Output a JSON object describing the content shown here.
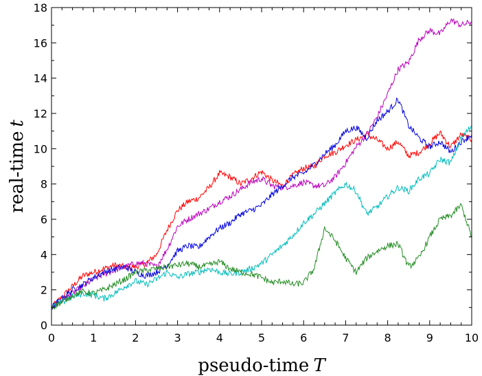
{
  "chart_data": {
    "type": "line",
    "title": "",
    "xlabel": "pseudo-time",
    "xlabel_symbol": "T",
    "ylabel": "real-time",
    "ylabel_symbol": "t",
    "xlim": [
      0,
      10
    ],
    "ylim": [
      0,
      18
    ],
    "xticks": [
      "0",
      "1",
      "2",
      "3",
      "4",
      "5",
      "6",
      "7",
      "8",
      "9",
      "10"
    ],
    "yticks": [
      "0",
      "2",
      "4",
      "6",
      "8",
      "10",
      "12",
      "14",
      "16",
      "18"
    ],
    "grid": false,
    "legend": "none",
    "x": [
      0,
      0.25,
      0.5,
      0.75,
      1,
      1.25,
      1.5,
      1.75,
      2,
      2.25,
      2.5,
      2.75,
      3,
      3.25,
      3.5,
      3.75,
      4,
      4.25,
      4.5,
      4.75,
      5,
      5.25,
      5.5,
      5.75,
      6,
      6.25,
      6.5,
      6.75,
      7,
      7.25,
      7.5,
      7.75,
      8,
      8.25,
      8.5,
      8.75,
      9,
      9.25,
      9.5,
      9.75,
      10
    ],
    "series": [
      {
        "color": "#ff0000",
        "values": [
          1,
          1.6,
          2.2,
          2.8,
          3.0,
          3.2,
          3.4,
          3.3,
          3.3,
          3.5,
          4.0,
          5.4,
          6.5,
          7.0,
          7.2,
          7.8,
          8.6,
          8.4,
          8.0,
          8.3,
          8.7,
          8.2,
          7.9,
          8.5,
          8.9,
          9.0,
          9.6,
          9.8,
          10.2,
          10.5,
          10.8,
          10.5,
          10.0,
          10.4,
          9.6,
          9.8,
          10.3,
          10.9,
          10.1,
          10.8,
          10.5
        ]
      },
      {
        "color": "#bb00bb",
        "values": [
          1,
          1.4,
          1.8,
          2.2,
          2.6,
          2.9,
          3.1,
          3.3,
          3.5,
          3.5,
          3.3,
          4.3,
          5.6,
          6.0,
          6.3,
          6.6,
          7.0,
          7.3,
          7.7,
          8.1,
          8.3,
          7.9,
          7.8,
          7.9,
          8.1,
          7.9,
          7.9,
          8.4,
          9.2,
          10.1,
          10.8,
          11.8,
          13.1,
          14.5,
          14.9,
          16.2,
          16.7,
          16.5,
          17.3,
          17.0,
          17.2
        ]
      },
      {
        "color": "#0000dd",
        "values": [
          1,
          1.5,
          2.0,
          2.3,
          2.7,
          3.0,
          3.2,
          3.3,
          3.0,
          2.8,
          3.0,
          3.4,
          4.2,
          4.5,
          4.4,
          5.0,
          5.5,
          5.8,
          6.3,
          6.5,
          6.8,
          7.4,
          7.9,
          8.4,
          8.6,
          9.1,
          9.7,
          10.2,
          11.0,
          11.2,
          10.6,
          11.6,
          12.1,
          12.8,
          11.3,
          10.6,
          10.1,
          10.4,
          9.8,
          10.4,
          10.8
        ]
      },
      {
        "color": "#00bbbb",
        "values": [
          1,
          1.3,
          1.6,
          1.8,
          1.7,
          1.5,
          1.8,
          2.2,
          2.5,
          2.3,
          2.6,
          3.0,
          2.7,
          2.9,
          3.0,
          3.2,
          3.0,
          2.9,
          3.0,
          3.2,
          3.5,
          4.0,
          4.5,
          5.1,
          5.8,
          6.3,
          6.9,
          7.5,
          8.0,
          7.6,
          6.3,
          6.7,
          7.3,
          7.8,
          7.6,
          8.3,
          8.6,
          9.4,
          9.2,
          10.6,
          11.3
        ]
      },
      {
        "color": "#228b22",
        "values": [
          1,
          1.3,
          1.7,
          1.9,
          1.8,
          2.0,
          2.3,
          2.6,
          3.0,
          3.1,
          3.2,
          3.3,
          3.4,
          3.5,
          3.3,
          3.4,
          3.6,
          3.2,
          3.0,
          2.9,
          2.7,
          2.4,
          2.5,
          2.3,
          2.4,
          3.2,
          5.5,
          4.8,
          3.8,
          3.0,
          3.8,
          4.2,
          4.5,
          4.6,
          3.3,
          3.8,
          5.0,
          6.0,
          6.2,
          6.8,
          5.0
        ]
      }
    ]
  }
}
